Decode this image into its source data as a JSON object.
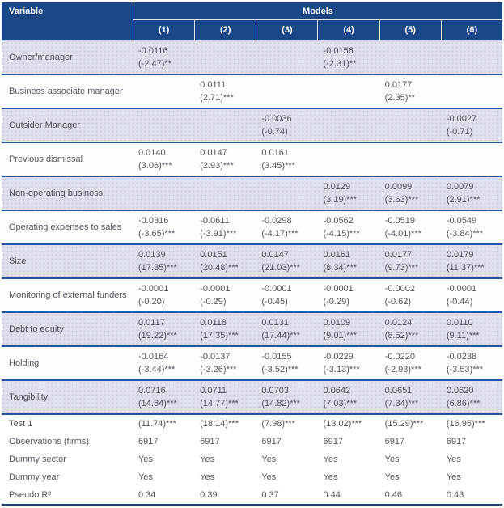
{
  "colors": {
    "header_bg": "#1a4787",
    "header_text": "#ffffff",
    "shaded_row_bg": "#dee0eb",
    "row_separator": "#2456a4",
    "bottom_border": "#1d3f7d",
    "body_text": "#54555f"
  },
  "table": {
    "header": {
      "variable": "Variable",
      "models": "Models",
      "columns": [
        "(1)",
        "(2)",
        "(3)",
        "(4)",
        "(5)",
        "(6)"
      ]
    },
    "rows": [
      {
        "label": "Owner/manager",
        "shaded": true,
        "cells": [
          {
            "coef": "-0.0116",
            "tstat": "(-2.47)**"
          },
          {
            "coef": "",
            "tstat": ""
          },
          {
            "coef": "",
            "tstat": ""
          },
          {
            "coef": "-0.0156",
            "tstat": "(-2.31)**"
          },
          {
            "coef": "",
            "tstat": ""
          },
          {
            "coef": "",
            "tstat": ""
          }
        ]
      },
      {
        "label": "Business associate manager",
        "shaded": false,
        "cells": [
          {
            "coef": "",
            "tstat": ""
          },
          {
            "coef": "0.0111",
            "tstat": "(2.71)***"
          },
          {
            "coef": "",
            "tstat": ""
          },
          {
            "coef": "",
            "tstat": ""
          },
          {
            "coef": "0.0177",
            "tstat": "(2.35)**"
          },
          {
            "coef": "",
            "tstat": ""
          }
        ]
      },
      {
        "label": "Outsider Manager",
        "shaded": true,
        "cells": [
          {
            "coef": "",
            "tstat": ""
          },
          {
            "coef": "",
            "tstat": ""
          },
          {
            "coef": "-0.0036",
            "tstat": "(-0.74)"
          },
          {
            "coef": "",
            "tstat": ""
          },
          {
            "coef": "",
            "tstat": ""
          },
          {
            "coef": "-0.0027",
            "tstat": "(-0.71)"
          }
        ]
      },
      {
        "label": "Previous dismissal",
        "shaded": false,
        "cells": [
          {
            "coef": "0.0140",
            "tstat": "(3.06)***"
          },
          {
            "coef": "0.0147",
            "tstat": "(2.93)***"
          },
          {
            "coef": "0.0161",
            "tstat": "(3.45)***"
          },
          {
            "coef": "",
            "tstat": ""
          },
          {
            "coef": "",
            "tstat": ""
          },
          {
            "coef": "",
            "tstat": ""
          }
        ]
      },
      {
        "label": "Non-operating business",
        "shaded": true,
        "cells": [
          {
            "coef": "",
            "tstat": ""
          },
          {
            "coef": "",
            "tstat": ""
          },
          {
            "coef": "",
            "tstat": ""
          },
          {
            "coef": "0.0129",
            "tstat": "(3.19)***"
          },
          {
            "coef": "0.0099",
            "tstat": "(3.63)***"
          },
          {
            "coef": "0.0079",
            "tstat": "(2.91)***"
          }
        ]
      },
      {
        "label": "Operating expenses to sales",
        "shaded": false,
        "cells": [
          {
            "coef": "-0.0316",
            "tstat": "(-3.65)***"
          },
          {
            "coef": "-0.0611",
            "tstat": "(-3.91)***"
          },
          {
            "coef": "-0.0298",
            "tstat": "(-4.17)***"
          },
          {
            "coef": "-0.0562",
            "tstat": "(-4.15)***"
          },
          {
            "coef": "-0.0519",
            "tstat": "(-4.01)***"
          },
          {
            "coef": "-0.0549",
            "tstat": "(-3.84)***"
          }
        ]
      },
      {
        "label": "Size",
        "shaded": true,
        "cells": [
          {
            "coef": "0.0139",
            "tstat": "(17.35)***"
          },
          {
            "coef": "0.0151",
            "tstat": "(20.48)***"
          },
          {
            "coef": "0.0147",
            "tstat": "(21.03)***"
          },
          {
            "coef": "0.0161",
            "tstat": "(8.34)***"
          },
          {
            "coef": "0.0177",
            "tstat": "(9.73)***"
          },
          {
            "coef": "0.0179",
            "tstat": "(11.37)***"
          }
        ]
      },
      {
        "label": "Monitoring of external funders",
        "shaded": false,
        "cells": [
          {
            "coef": "-0.0001",
            "tstat": "(-0.20)"
          },
          {
            "coef": "-0.0001",
            "tstat": "(-0.29)"
          },
          {
            "coef": "-0.0001",
            "tstat": "(-0.45)"
          },
          {
            "coef": "-0.0001",
            "tstat": "(-0.29)"
          },
          {
            "coef": "-0.0002",
            "tstat": "(-0.62)"
          },
          {
            "coef": "-0.0001",
            "tstat": "(-0.44)"
          }
        ]
      },
      {
        "label": "Debt to equity",
        "shaded": true,
        "cells": [
          {
            "coef": "0.0117",
            "tstat": "(19.22)***"
          },
          {
            "coef": "0.0118",
            "tstat": "(17.35)***"
          },
          {
            "coef": "0.0131",
            "tstat": "(17.44)***"
          },
          {
            "coef": "0.0109",
            "tstat": "(9.01)***"
          },
          {
            "coef": "0.0124",
            "tstat": "(8.52)***"
          },
          {
            "coef": "0.0110",
            "tstat": "(9.11)***"
          }
        ]
      },
      {
        "label": "Holding",
        "shaded": false,
        "cells": [
          {
            "coef": "-0.0164",
            "tstat": "(-3.44)***"
          },
          {
            "coef": "-0.0137",
            "tstat": "(-3.26)***"
          },
          {
            "coef": "-0.0155",
            "tstat": "(-3.52)***"
          },
          {
            "coef": "-0.0229",
            "tstat": "(-3.13)***"
          },
          {
            "coef": "-0.0220",
            "tstat": "(-2.93)***"
          },
          {
            "coef": "-0.0238",
            "tstat": "(-3.53)***"
          }
        ]
      },
      {
        "label": "Tangibility",
        "shaded": true,
        "cells": [
          {
            "coef": "0.0716",
            "tstat": "(14.84)***"
          },
          {
            "coef": "0.0711",
            "tstat": "(14.77)***"
          },
          {
            "coef": "0.0703",
            "tstat": "(14.82)***"
          },
          {
            "coef": "0.0642",
            "tstat": "(7.03)***"
          },
          {
            "coef": "0.0651",
            "tstat": "(7.34)***"
          },
          {
            "coef": "0.0620",
            "tstat": "(6.86)***"
          }
        ]
      }
    ],
    "footer_rows": [
      {
        "label": "Test 1",
        "values": [
          "(11.74)***",
          "(18.14)***",
          "(7.98)***",
          "(13.02)***",
          "(15.29)***",
          "(16.95)***"
        ]
      },
      {
        "label": "Observations (firms)",
        "values": [
          "6917",
          "6917",
          "6917",
          "6917",
          "6917",
          "6917"
        ]
      },
      {
        "label": "Dummy sector",
        "values": [
          "Yes",
          "Yes",
          "Yes",
          "Yes",
          "Yes",
          "Yes"
        ]
      },
      {
        "label": "Dummy year",
        "values": [
          "Yes",
          "Yes",
          "Yes",
          "Yes",
          "Yes",
          "Yes"
        ]
      },
      {
        "label": "Pseudo R²",
        "values": [
          "0.34",
          "0.39",
          "0.37",
          "0.44",
          "0.46",
          "0.43"
        ]
      }
    ]
  }
}
